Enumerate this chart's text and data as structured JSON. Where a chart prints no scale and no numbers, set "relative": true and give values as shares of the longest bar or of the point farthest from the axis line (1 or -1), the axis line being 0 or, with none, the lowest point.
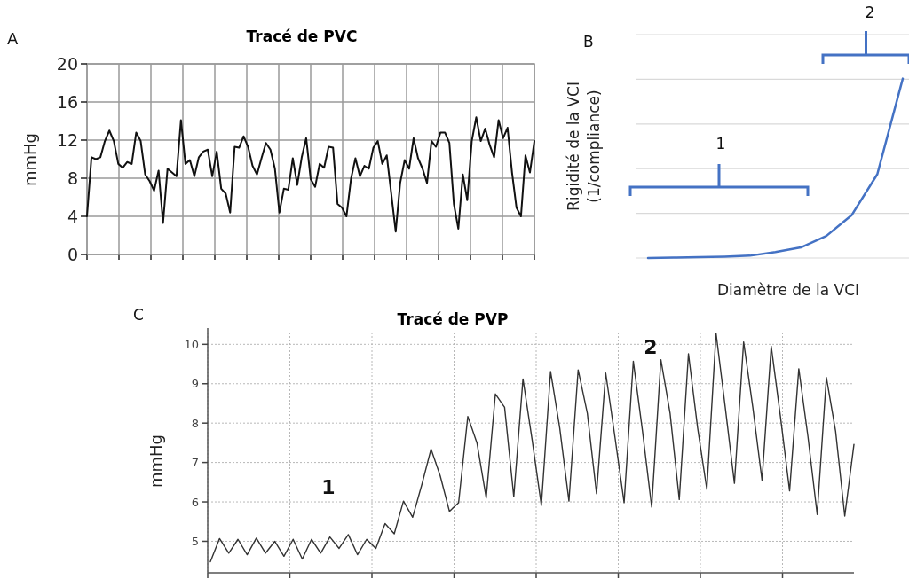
{
  "chart_data": [
    {
      "type": "line",
      "title": "Tracé de PVC",
      "ylabel": "mmHg",
      "annotations": [
        "A"
      ],
      "categories": [
        null,
        null,
        null,
        null,
        null,
        null,
        null,
        null,
        null,
        null,
        null,
        null,
        null,
        null,
        null,
        null,
        null,
        null,
        null,
        null,
        null,
        null,
        null,
        null,
        null,
        null,
        null,
        null,
        null,
        null,
        null,
        null,
        null,
        null,
        null,
        null,
        null,
        null,
        null,
        null,
        null,
        null,
        null,
        null,
        null,
        null,
        null,
        null,
        null,
        null,
        null,
        null,
        null,
        null,
        null,
        null,
        null,
        null,
        null,
        null,
        null,
        null,
        null,
        null,
        null,
        null,
        null,
        null,
        null,
        null,
        null,
        null,
        null,
        null,
        null,
        null,
        null,
        null,
        null,
        null,
        null,
        null,
        null,
        null,
        null,
        null,
        null,
        null,
        null,
        null,
        null,
        null,
        null,
        null,
        null,
        null,
        null,
        null,
        null,
        null,
        null
      ],
      "series": [
        {
          "color": "#111111",
          "values": [
            4.0,
            10.2,
            10.0,
            10.2,
            11.9,
            13.0,
            11.9,
            9.5,
            9.1,
            9.7,
            9.5,
            12.8,
            11.9,
            8.4,
            7.7,
            6.7,
            8.8,
            3.3,
            9.0,
            8.6,
            8.2,
            14.1,
            9.5,
            9.9,
            8.2,
            10.2,
            10.8,
            11.0,
            8.2,
            10.8,
            6.9,
            6.4,
            4.4,
            11.3,
            11.2,
            12.4,
            11.3,
            9.3,
            8.4,
            10.1,
            11.7,
            11.0,
            9.0,
            4.4,
            6.9,
            6.8,
            10.1,
            7.3,
            10.2,
            12.2,
            7.9,
            7.1,
            9.5,
            9.1,
            11.3,
            11.2,
            5.3,
            4.9,
            4.0,
            7.9,
            10.1,
            8.2,
            9.3,
            9.0,
            11.2,
            11.9,
            9.5,
            10.4,
            6.4,
            2.4,
            7.5,
            9.9,
            9.0,
            12.2,
            10.1,
            9.0,
            7.5,
            11.9,
            11.3,
            12.8,
            12.8,
            11.7,
            5.3,
            2.7,
            8.4,
            5.7,
            11.9,
            14.4,
            11.9,
            13.2,
            11.5,
            10.2,
            14.1,
            12.2,
            13.3,
            8.6,
            4.9,
            4.0,
            10.4,
            8.6,
            11.9
          ]
        }
      ],
      "ylim": [
        0,
        20
      ],
      "yticks": [
        0,
        4,
        8,
        12,
        16,
        20
      ],
      "grid": true,
      "tick_labels": "y"
    },
    {
      "type": "line",
      "relative": true,
      "xlabel": "Diamètre de la VCI",
      "ylabel": "Rigidité de la VCI\n(1/compliance)",
      "annotations": [
        "B",
        "1",
        "2"
      ],
      "categories": [
        null,
        null,
        null,
        null,
        null,
        null,
        null,
        null,
        null,
        null,
        null
      ],
      "series": [
        {
          "color": "#4472c4",
          "values": [
            0,
            0.002,
            0.005,
            0.008,
            0.013,
            0.033,
            0.059,
            0.123,
            0.24,
            0.467,
            1.0
          ]
        }
      ],
      "grid": "y",
      "tick_labels": false
    },
    {
      "type": "line",
      "title": "Tracé de PVP",
      "ylabel": "mmHg",
      "annotations": [
        "C",
        "1",
        "2"
      ],
      "categories": [
        null,
        null,
        null,
        null,
        null,
        null,
        null,
        null,
        null,
        null,
        null,
        null,
        null,
        null,
        null,
        null,
        null,
        null,
        null,
        null,
        null,
        null,
        null,
        null,
        null,
        null,
        null,
        null,
        null,
        null,
        null,
        null,
        null,
        null,
        null,
        null,
        null,
        null,
        null,
        null,
        null,
        null,
        null,
        null,
        null,
        null,
        null,
        null,
        null,
        null,
        null,
        null,
        null,
        null,
        null,
        null,
        null,
        null,
        null,
        null,
        null,
        null,
        null,
        null,
        null,
        null,
        null,
        null,
        null,
        null,
        null
      ],
      "series": [
        {
          "color": "#333333",
          "values": [
            4.48,
            5.07,
            4.7,
            5.05,
            4.66,
            5.08,
            4.7,
            5.0,
            4.62,
            5.05,
            4.55,
            5.05,
            4.7,
            5.11,
            4.82,
            5.17,
            4.66,
            5.05,
            4.82,
            5.45,
            5.19,
            6.02,
            5.61,
            6.44,
            7.34,
            6.66,
            5.76,
            5.98,
            8.17,
            7.49,
            6.1,
            8.74,
            8.4,
            6.13,
            9.12,
            7.57,
            5.91,
            9.31,
            7.87,
            6.02,
            9.35,
            8.25,
            6.21,
            9.27,
            7.65,
            5.98,
            9.57,
            7.8,
            5.87,
            9.61,
            8.25,
            6.06,
            9.76,
            7.87,
            6.32,
            10.28,
            8.4,
            6.47,
            10.06,
            8.4,
            6.55,
            9.95,
            8.17,
            6.28,
            9.38,
            7.65,
            5.68,
            9.16,
            7.8,
            5.64,
            7.46
          ]
        }
      ],
      "ylim": [
        4.2,
        10.3
      ],
      "yticks": [
        5,
        6,
        7,
        8,
        9,
        10
      ],
      "grid": true,
      "tick_labels": "y"
    }
  ]
}
